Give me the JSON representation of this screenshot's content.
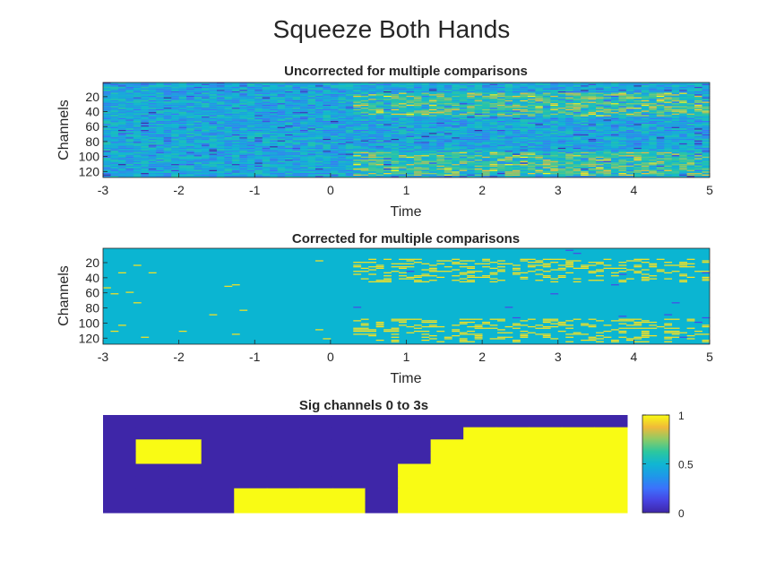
{
  "figure": {
    "title": "Squeeze Both Hands"
  },
  "chart_data": [
    {
      "type": "heatmap",
      "title": "Uncorrected for multiple comparisons",
      "xlabel": "Time",
      "ylabel": "Channels",
      "xlim": [
        -3,
        5
      ],
      "ylim": [
        1,
        128
      ],
      "y_direction": "reverse",
      "xticks": [
        "-3",
        "-2",
        "-1",
        "0",
        "1",
        "2",
        "3",
        "4",
        "5"
      ],
      "yticks": [
        "20",
        "40",
        "60",
        "80",
        "100",
        "120"
      ],
      "colormap": "parula",
      "clim": [
        0,
        1
      ],
      "description_of_values": "noisy channel-by-time map; mostly mid values (~0.45), stronger yellow bands after time 0.3 concentrated near channels 15-45 and 95-125"
    },
    {
      "type": "heatmap",
      "title": "Corrected for multiple comparisons",
      "xlabel": "Time",
      "ylabel": "Channels",
      "xlim": [
        -3,
        5
      ],
      "ylim": [
        1,
        128
      ],
      "y_direction": "reverse",
      "xticks": [
        "-3",
        "-2",
        "-1",
        "0",
        "1",
        "2",
        "3",
        "4",
        "5"
      ],
      "yticks": [
        "20",
        "40",
        "60",
        "80",
        "100",
        "120"
      ],
      "colormap": "parula",
      "clim": [
        0,
        1
      ],
      "background_value": 0.5,
      "description_of_values": "uniform cyan background with sparse yellow significant segments after time 0.3 near channels 15-45 and 95-125, a few scattered before 0"
    },
    {
      "type": "heatmap",
      "title": "Sig channels 0 to 3s",
      "clim": [
        0,
        1
      ],
      "colormap": "parula",
      "colorbar": {
        "ticks": [
          "0",
          "0.5",
          "1"
        ]
      },
      "rows": 8,
      "cols": 16,
      "cells": [
        [
          0,
          0,
          0,
          0,
          0,
          0,
          0,
          0,
          0,
          0,
          0,
          0,
          0,
          0,
          0,
          0
        ],
        [
          0,
          0,
          0,
          0,
          0,
          0,
          0,
          0,
          0,
          0,
          0,
          1,
          1,
          1,
          1,
          1
        ],
        [
          0,
          1,
          1,
          0,
          0,
          0,
          0,
          0,
          0,
          0,
          1,
          1,
          1,
          1,
          1,
          1
        ],
        [
          0,
          1,
          1,
          0,
          0,
          0,
          0,
          0,
          0,
          0,
          1,
          1,
          1,
          1,
          1,
          1
        ],
        [
          0,
          0,
          0,
          0,
          0,
          0,
          0,
          0,
          0,
          1,
          1,
          1,
          1,
          1,
          1,
          1
        ],
        [
          0,
          0,
          0,
          0,
          0,
          0,
          0,
          0,
          0,
          1,
          1,
          1,
          1,
          1,
          1,
          1
        ],
        [
          0,
          0,
          0,
          0,
          1,
          1,
          1,
          1,
          0,
          1,
          1,
          1,
          1,
          1,
          1,
          1
        ],
        [
          0,
          0,
          0,
          0,
          1,
          1,
          1,
          1,
          0,
          1,
          1,
          1,
          1,
          1,
          1,
          1
        ]
      ]
    }
  ]
}
